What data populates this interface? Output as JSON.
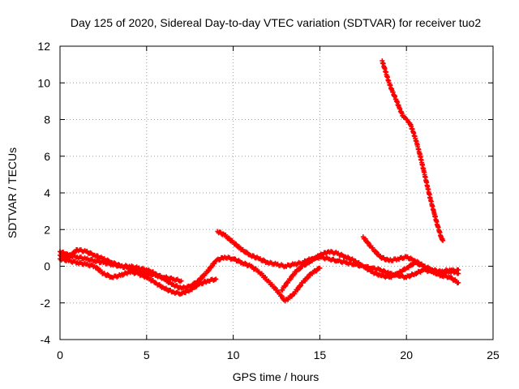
{
  "chart_data": {
    "type": "scatter",
    "title": "Day 125 of 2020, Sidereal Day-to-day VTEC variation (SDTVAR) for receiver tuo2",
    "xlabel": "GPS time / hours",
    "ylabel": "SDTVAR / TECUs",
    "xlim": [
      0,
      25
    ],
    "ylim": [
      -4,
      12
    ],
    "xticks": [
      0,
      5,
      10,
      15,
      20,
      25
    ],
    "yticks": [
      -4,
      -2,
      0,
      2,
      4,
      6,
      8,
      10,
      12
    ],
    "grid": true,
    "marker": "+",
    "series": [
      {
        "name": "SDTVAR",
        "color": "#ff0000",
        "tracks": [
          {
            "x": [
              0.0,
              0.5,
              1.0,
              1.5,
              2.0,
              2.5,
              3.0,
              3.5,
              4.0,
              4.5,
              5.0,
              5.5,
              6.0,
              6.5,
              7.0,
              7.5,
              8.0,
              8.5,
              9.0,
              9.5,
              10.0,
              10.5,
              11.0,
              11.5,
              12.0,
              12.5,
              13.0,
              13.5,
              14.0,
              14.5,
              15.0
            ],
            "y": [
              0.8,
              0.6,
              0.5,
              0.4,
              0.3,
              0.2,
              0.1,
              0.0,
              0.0,
              -0.1,
              -0.2,
              -0.4,
              -0.7,
              -1.0,
              -1.2,
              -1.1,
              -0.8,
              -0.3,
              0.3,
              0.5,
              0.4,
              0.2,
              0.0,
              -0.3,
              -0.8,
              -1.3,
              -1.9,
              -1.5,
              -0.9,
              -0.4,
              -0.1
            ]
          },
          {
            "x": [
              0.0,
              0.5,
              1.0,
              1.5,
              2.0,
              2.5,
              3.0,
              3.5,
              4.0,
              4.5,
              5.0,
              5.5,
              6.0,
              6.5,
              7.0,
              7.5,
              8.0,
              8.5,
              9.0
            ],
            "y": [
              0.4,
              0.3,
              0.2,
              0.1,
              0.0,
              -0.4,
              -0.6,
              -0.5,
              -0.3,
              -0.4,
              -0.6,
              -0.9,
              -1.2,
              -1.4,
              -1.5,
              -1.3,
              -1.0,
              -0.8,
              -0.7
            ]
          },
          {
            "x": [
              0.0,
              0.5,
              1.0,
              1.5,
              2.0,
              2.5,
              3.0,
              3.5,
              4.0,
              4.5,
              5.0,
              5.5,
              6.0,
              6.5,
              7.0
            ],
            "y": [
              0.6,
              0.5,
              0.9,
              0.8,
              0.6,
              0.4,
              0.2,
              0.0,
              -0.1,
              -0.3,
              -0.4,
              -0.5,
              -0.6,
              -0.7,
              -0.8
            ]
          },
          {
            "x": [
              9.1,
              9.5,
              10.0,
              10.5,
              11.0,
              11.5,
              12.0,
              12.5,
              13.0,
              13.5,
              14.0,
              14.5,
              15.0,
              15.5,
              16.0,
              16.5,
              17.0,
              17.5,
              18.0,
              18.5,
              19.0,
              19.5,
              20.0,
              20.5,
              21.0,
              21.5,
              22.0,
              22.5,
              23.0
            ],
            "y": [
              1.9,
              1.7,
              1.3,
              0.9,
              0.6,
              0.4,
              0.2,
              0.1,
              0.0,
              0.1,
              0.2,
              0.4,
              0.5,
              0.4,
              0.3,
              0.2,
              0.1,
              0.0,
              -0.1,
              -0.2,
              -0.4,
              -0.5,
              -0.6,
              -0.4,
              -0.2,
              -0.3,
              -0.4,
              -0.3,
              -0.2
            ]
          },
          {
            "x": [
              12.8,
              13.2,
              13.6,
              14.0,
              14.5,
              15.0,
              15.5,
              16.0,
              16.5,
              17.0,
              17.5,
              18.0,
              18.5,
              19.0,
              19.5,
              20.0,
              20.5,
              21.0,
              21.5,
              22.0,
              22.5,
              23.0
            ],
            "y": [
              -1.3,
              -0.8,
              -0.3,
              0.0,
              0.3,
              0.6,
              0.8,
              0.7,
              0.5,
              0.3,
              0.0,
              -0.3,
              -0.5,
              -0.6,
              -0.4,
              -0.1,
              0.2,
              0.0,
              -0.3,
              -0.5,
              -0.6,
              -0.9
            ]
          },
          {
            "x": [
              17.5,
              18.0,
              18.5,
              19.0,
              19.5,
              20.0,
              20.5,
              21.0,
              21.5,
              22.0,
              22.5,
              23.0
            ],
            "y": [
              1.6,
              1.0,
              0.5,
              0.3,
              0.4,
              0.5,
              0.3,
              0.0,
              -0.2,
              -0.3,
              -0.2,
              -0.4
            ]
          },
          {
            "x": [
              18.6,
              18.8,
              19.0,
              19.2,
              19.4,
              19.6,
              19.8,
              20.0,
              20.2,
              20.4,
              20.6,
              20.8,
              21.0,
              21.2,
              21.4,
              21.6,
              21.8,
              22.0,
              22.1
            ],
            "y": [
              11.2,
              10.6,
              10.0,
              9.5,
              9.1,
              8.6,
              8.2,
              8.0,
              7.8,
              7.3,
              6.7,
              6.0,
              5.2,
              4.4,
              3.6,
              2.9,
              2.2,
              1.6,
              1.4
            ]
          }
        ]
      }
    ]
  }
}
